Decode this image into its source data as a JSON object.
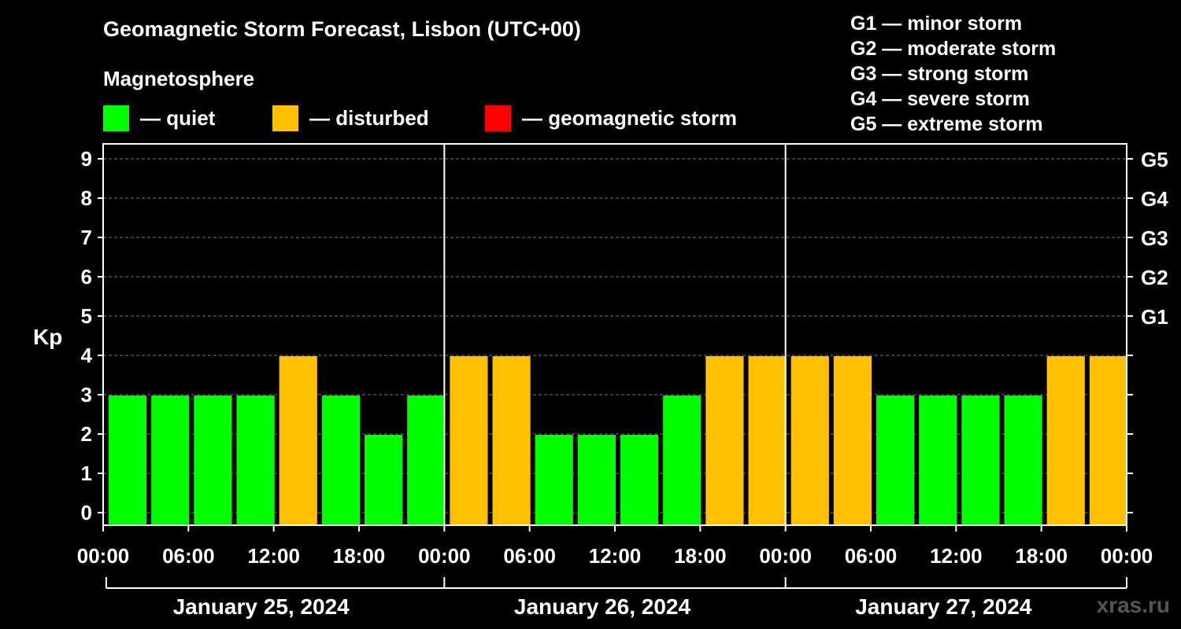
{
  "chart_data": {
    "type": "bar",
    "title": "Geomagnetic Storm Forecast, Lisbon (UTC+00)",
    "subtitle": "Magnetosphere",
    "ylabel": "Kp",
    "ylim": [
      0,
      9
    ],
    "y_ticks": [
      "0",
      "1",
      "2",
      "3",
      "4",
      "5",
      "6",
      "7",
      "8",
      "9"
    ],
    "storm_ticks": [
      {
        "kp": 5,
        "label": "G1"
      },
      {
        "kp": 6,
        "label": "G2"
      },
      {
        "kp": 7,
        "label": "G3"
      },
      {
        "kp": 8,
        "label": "G4"
      },
      {
        "kp": 9,
        "label": "G5"
      }
    ],
    "x_ticks": [
      "00:00",
      "06:00",
      "12:00",
      "18:00",
      "00:00",
      "06:00",
      "12:00",
      "18:00",
      "00:00",
      "06:00",
      "12:00",
      "18:00",
      "00:00"
    ],
    "days": [
      "January 25, 2024",
      "January 26, 2024",
      "January 27, 2024"
    ],
    "values": [
      3,
      3,
      3,
      3,
      4,
      3,
      2,
      3,
      4,
      4,
      2,
      2,
      2,
      3,
      4,
      4,
      4,
      4,
      3,
      3,
      3,
      3,
      4,
      4
    ],
    "colors": {
      "quiet": "#00ff00",
      "disturbed": "#ffc000",
      "storm": "#ff0000"
    },
    "legend": [
      {
        "key": "quiet",
        "label": "— quiet"
      },
      {
        "key": "disturbed",
        "label": "— disturbed"
      },
      {
        "key": "storm",
        "label": "— geomagnetic storm"
      }
    ],
    "storm_legend": [
      "G1 — minor storm",
      "G2 — moderate storm",
      "G3 — strong storm",
      "G4 — severe storm",
      "G5 — extreme storm"
    ],
    "grid": true
  },
  "watermark": "xras.ru"
}
